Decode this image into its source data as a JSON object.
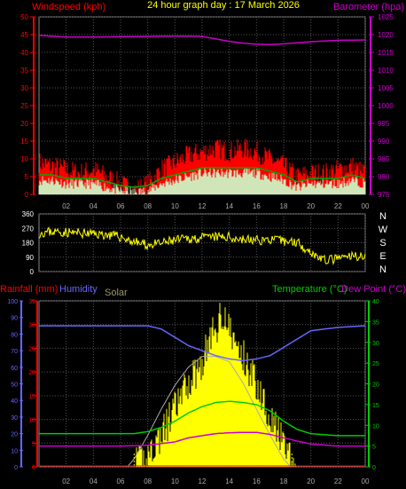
{
  "chart_data": [
    {
      "type": "line",
      "panel": "wind_and_barometer",
      "title": "24 hour graph day : 17 March 2026",
      "left_axis_label": "Windspeed (kph)",
      "right_axis_label": "Barometer (hpa)",
      "left_ylim": [
        0,
        50
      ],
      "left_ticks": [
        "0",
        "5",
        "10",
        "15",
        "20",
        "25",
        "30",
        "35",
        "40",
        "45",
        "50"
      ],
      "right_ylim": [
        975,
        1025
      ],
      "right_ticks": [
        "975",
        "980",
        "985",
        "990",
        "995",
        "1000",
        "1005",
        "1010",
        "1015",
        "1020",
        "1025"
      ],
      "x_ticks": [
        "02",
        "04",
        "06",
        "08",
        "10",
        "12",
        "14",
        "16",
        "18",
        "20",
        "22",
        "00"
      ],
      "grid": true,
      "series": [
        {
          "key": "gust",
          "color": "#ff0000",
          "x": [
            0,
            1,
            2,
            3,
            4,
            5,
            6,
            7,
            8,
            9,
            10,
            11,
            12,
            13,
            14,
            15,
            16,
            17,
            18,
            19,
            20,
            21,
            22,
            23,
            24
          ],
          "values": [
            9,
            8,
            7,
            6,
            7,
            5,
            3,
            1,
            3,
            7,
            9,
            11,
            12,
            13,
            12,
            13,
            12,
            10,
            8,
            5,
            6,
            6,
            7,
            8,
            6
          ]
        },
        {
          "key": "wind",
          "color": "#00cc00",
          "x": [
            0,
            1,
            2,
            3,
            4,
            5,
            6,
            7,
            8,
            9,
            10,
            11,
            12,
            13,
            14,
            15,
            16,
            17,
            18,
            19,
            20,
            21,
            22,
            23,
            24
          ],
          "values": [
            4,
            4,
            3,
            3,
            3,
            2,
            1,
            0.5,
            1,
            3,
            4,
            5,
            6,
            6,
            6,
            6,
            6,
            5,
            4,
            2,
            3,
            3,
            3,
            4,
            3
          ]
        },
        {
          "key": "barometer",
          "color": "#cc00cc",
          "x": [
            0,
            2,
            4,
            6,
            8,
            10,
            12,
            13,
            14,
            15,
            16,
            17,
            18,
            20,
            22,
            24
          ],
          "values": [
            1019.8,
            1019.3,
            1019.3,
            1019.4,
            1019.5,
            1019.6,
            1019.5,
            1018.8,
            1018.1,
            1017.6,
            1017.3,
            1017.2,
            1017.4,
            1018.0,
            1018.4,
            1018.5
          ]
        }
      ]
    },
    {
      "type": "line",
      "panel": "wind_direction",
      "ylim": [
        0,
        360
      ],
      "y_ticks": [
        "0",
        "90",
        "180",
        "270",
        "360"
      ],
      "direction_labels": [
        "N",
        "W",
        "S",
        "E",
        "N"
      ],
      "x_ticks": [
        "02",
        "04",
        "06",
        "08",
        "10",
        "12",
        "14",
        "16",
        "18",
        "20",
        "22",
        "00"
      ],
      "series": [
        {
          "key": "direction",
          "color": "#ffff00",
          "x": [
            0,
            1,
            2,
            3,
            4,
            5,
            6,
            7,
            8,
            9,
            10,
            11,
            12,
            13,
            14,
            15,
            16,
            17,
            18,
            19,
            20,
            21,
            22,
            23,
            24
          ],
          "values": [
            240,
            250,
            245,
            240,
            235,
            230,
            215,
            185,
            165,
            175,
            195,
            205,
            210,
            215,
            215,
            200,
            195,
            200,
            190,
            185,
            120,
            70,
            80,
            95,
            100
          ]
        }
      ]
    },
    {
      "type": "line",
      "panel": "rain_humidity_temperature_solar",
      "legend": [
        "Rainfall (mm)",
        "Humidity",
        "Solar",
        "Temperature (°C)",
        "Dew Point (°C)"
      ],
      "rain_ticks": [
        "0",
        "5",
        "10",
        "15",
        "20",
        "25",
        "30",
        "35"
      ],
      "rain_ylim": [
        0,
        35
      ],
      "humidity_ticks": [
        "0",
        "10",
        "20",
        "30",
        "40",
        "50",
        "60",
        "70",
        "80",
        "90",
        "100"
      ],
      "humidity_ylim": [
        0,
        100
      ],
      "temp_ticks": [
        "0",
        "5",
        "10",
        "15",
        "20",
        "25",
        "30",
        "35",
        "40"
      ],
      "temp_ylim": [
        0,
        40
      ],
      "x_ticks": [
        "02",
        "04",
        "06",
        "08",
        "10",
        "12",
        "14",
        "16",
        "18",
        "20",
        "22",
        "00"
      ],
      "series": [
        {
          "key": "humidity",
          "color": "#6666ff",
          "x": [
            0,
            2,
            4,
            6,
            8,
            9,
            10,
            11,
            12,
            13,
            14,
            15,
            16,
            17,
            18,
            19,
            20,
            22,
            24
          ],
          "values": [
            85,
            85,
            85,
            85,
            85,
            83,
            78,
            73,
            70,
            67,
            65,
            64,
            65,
            67,
            72,
            77,
            82,
            84,
            85
          ]
        },
        {
          "key": "temperature",
          "color": "#00cc00",
          "x": [
            0,
            2,
            4,
            6,
            7,
            8,
            9,
            10,
            11,
            12,
            13,
            14,
            15,
            16,
            17,
            18,
            19,
            20,
            22,
            24
          ],
          "values": [
            8,
            8,
            8,
            8,
            8,
            8.5,
            9.5,
            11,
            13,
            14.5,
            15.5,
            15.8,
            15.5,
            15,
            13.5,
            11,
            9,
            8,
            7.5,
            7.5
          ]
        },
        {
          "key": "dew_point",
          "color": "#cc00cc",
          "x": [
            0,
            2,
            4,
            6,
            8,
            10,
            11,
            12,
            13,
            14,
            15,
            16,
            17,
            18,
            19,
            20,
            22,
            24
          ],
          "values": [
            5,
            5,
            5,
            5,
            5.2,
            6,
            7,
            7.5,
            8,
            8.2,
            8.3,
            8.3,
            7.8,
            7,
            6.2,
            5.5,
            5,
            5
          ]
        },
        {
          "key": "solar",
          "color": "#ffff00",
          "x": [
            0,
            6,
            7,
            7.5,
            8,
            9,
            10,
            11,
            12,
            12.5,
            13,
            13.5,
            14,
            14.5,
            15,
            16,
            17,
            18,
            18.5,
            19,
            24
          ],
          "values": [
            0,
            0,
            0,
            2,
            5,
            12,
            22,
            32,
            40,
            48,
            52,
            60,
            52,
            46,
            42,
            32,
            20,
            8,
            2,
            0,
            0
          ]
        },
        {
          "key": "solar_theoretical",
          "color": "#aaaaaa",
          "x": [
            6.5,
            7,
            8,
            9,
            10,
            11,
            12,
            13,
            14,
            15,
            16,
            17,
            18,
            18.5
          ],
          "values": [
            0,
            3,
            12,
            22,
            31,
            38,
            42,
            42,
            40,
            32,
            22,
            12,
            3,
            0
          ]
        }
      ]
    }
  ]
}
